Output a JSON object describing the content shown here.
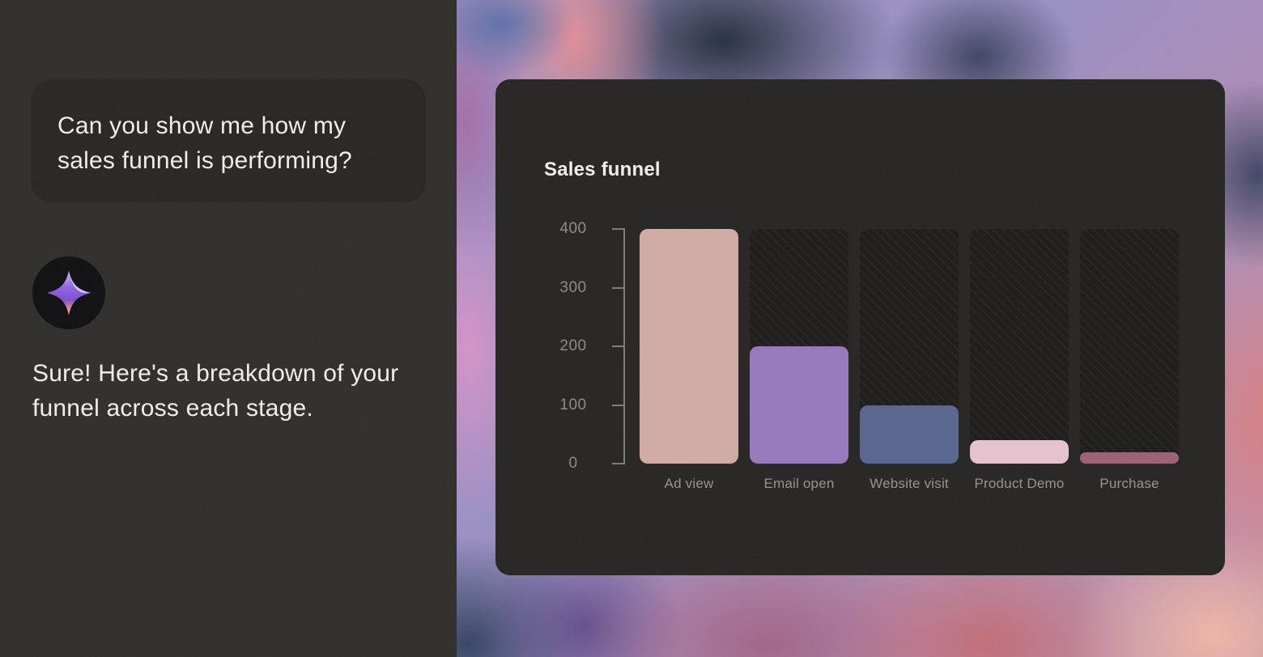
{
  "chat": {
    "user_message": "Can you show me how my sales funnel is performing?",
    "assistant_message": "Sure! Here's a breakdown of your funnel across each stage."
  },
  "card": {
    "title": "Sales funnel"
  },
  "chart_data": {
    "type": "bar",
    "title": "Sales funnel",
    "categories": [
      "Ad view",
      "Email open",
      "Website visit",
      "Product Demo",
      "Purchase"
    ],
    "values": [
      400,
      200,
      100,
      40,
      20
    ],
    "bar_colors": [
      "#d1aba3",
      "#9678bc",
      "#57658f",
      "#e6c2cf",
      "#9c5f75"
    ],
    "track_color": "#1b1a18",
    "track_pattern": "diagonal-hatch",
    "yticks": [
      400,
      300,
      200,
      100,
      0
    ],
    "ylim": [
      0,
      400
    ],
    "xlabel": "",
    "ylabel": "",
    "grid": false,
    "legend": false,
    "axis_color": "#7e7b77",
    "tick_label_color": "#8d8a86",
    "category_label_color": "#96928d",
    "card_background": "#262422"
  },
  "icons": {
    "assistant_avatar": "sparkle-icon"
  }
}
